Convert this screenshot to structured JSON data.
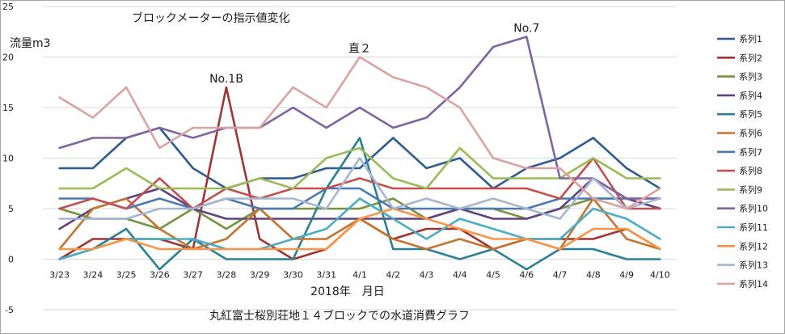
{
  "chart_data": {
    "type": "line",
    "title": "ブロックメーターの指示値変化",
    "subtitle": "丸紅富士桜別荘地１４ブロックでの水道消費グラフ",
    "xlabel": "2018年　月日",
    "ylabel": "流量m3",
    "ylim": [
      -5,
      25
    ],
    "yticks": [
      -5,
      0,
      5,
      10,
      15,
      20,
      25
    ],
    "grid": true,
    "legend_position": "right",
    "categories": [
      "3/23",
      "3/24",
      "3/25",
      "3/26",
      "3/27",
      "3/28",
      "3/29",
      "3/30",
      "3/31",
      "4/1",
      "4/2",
      "4/3",
      "4/4",
      "4/5",
      "4/6",
      "4/7",
      "4/8",
      "4/9",
      "4/10"
    ],
    "annotations": [
      {
        "text": "No.1B",
        "x": "3/28",
        "y": 17
      },
      {
        "text": "直２",
        "x": "4/1",
        "y": 20
      },
      {
        "text": "No.7",
        "x": "4/6",
        "y": 22
      }
    ],
    "series": [
      {
        "name": "系列1",
        "color": "#2E5C8F",
        "values": [
          9,
          9,
          12,
          13,
          9,
          7,
          8,
          8,
          9,
          9,
          12,
          9,
          10,
          7,
          9,
          10,
          12,
          9,
          7
        ]
      },
      {
        "name": "系列2",
        "color": "#9E3533",
        "values": [
          0,
          2,
          2,
          2,
          1,
          17,
          2,
          0,
          1,
          4,
          2,
          3,
          3,
          1,
          2,
          2,
          2,
          3,
          1
        ]
      },
      {
        "name": "系列3",
        "color": "#77933C",
        "values": [
          5,
          4,
          4,
          3,
          5,
          3,
          5,
          5,
          5,
          5,
          6,
          4,
          5,
          5,
          4,
          5,
          6,
          6,
          5
        ]
      },
      {
        "name": "系列4",
        "color": "#5F4282",
        "values": [
          3,
          5,
          6,
          7,
          5,
          4,
          4,
          4,
          4,
          4,
          4,
          4,
          5,
          4,
          4,
          5,
          8,
          6,
          5
        ]
      },
      {
        "name": "系列5",
        "color": "#2B8093",
        "values": [
          0,
          1,
          3,
          -1,
          2,
          0,
          0,
          0,
          7,
          12,
          1,
          1,
          0,
          1,
          -1,
          1,
          1,
          0,
          0
        ]
      },
      {
        "name": "系列6",
        "color": "#C5742F",
        "values": [
          1,
          5,
          6,
          3,
          1,
          2,
          5,
          2,
          2,
          4,
          2,
          1,
          2,
          1,
          2,
          1,
          6,
          2,
          1
        ]
      },
      {
        "name": "系列7",
        "color": "#4A7AB5",
        "values": [
          6,
          6,
          5,
          6,
          5,
          6,
          5,
          5,
          7,
          7,
          5,
          5,
          5,
          5,
          5,
          6,
          6,
          6,
          6
        ]
      },
      {
        "name": "系列8",
        "color": "#C2504E",
        "values": [
          5,
          6,
          5,
          8,
          5,
          7,
          6,
          7,
          7,
          8,
          7,
          7,
          7,
          7,
          7,
          6,
          10,
          5,
          5
        ]
      },
      {
        "name": "系列9",
        "color": "#9BBB59",
        "values": [
          7,
          7,
          9,
          7,
          7,
          7,
          8,
          7,
          10,
          11,
          8,
          7,
          11,
          8,
          8,
          8,
          10,
          8,
          8
        ]
      },
      {
        "name": "系列10",
        "color": "#8064A2",
        "values": [
          11,
          12,
          12,
          13,
          12,
          13,
          13,
          15,
          13,
          15,
          13,
          14,
          17,
          21,
          22,
          8,
          8,
          6,
          6
        ]
      },
      {
        "name": "系列11",
        "color": "#4BACC6",
        "values": [
          0,
          1,
          2,
          2,
          2,
          1,
          1,
          2,
          3,
          6,
          4,
          2,
          4,
          3,
          2,
          2,
          5,
          4,
          2
        ]
      },
      {
        "name": "系列12",
        "color": "#F79646",
        "values": [
          1,
          1,
          2,
          1,
          1,
          1,
          1,
          1,
          1,
          4,
          5,
          4,
          3,
          2,
          2,
          1,
          3,
          3,
          1
        ]
      },
      {
        "name": "系列13",
        "color": "#A5B6D3",
        "values": [
          4,
          4,
          4,
          5,
          5,
          6,
          6,
          6,
          5,
          10,
          5,
          6,
          5,
          6,
          5,
          4,
          8,
          5,
          6
        ]
      },
      {
        "name": "系列14",
        "color": "#D9A3A1",
        "values": [
          16,
          14,
          17,
          11,
          13,
          13,
          13,
          17,
          15,
          20,
          18,
          17,
          15,
          10,
          9,
          9,
          6,
          5,
          7
        ]
      }
    ]
  }
}
